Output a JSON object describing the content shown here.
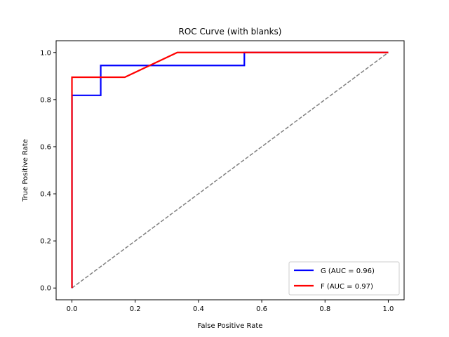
{
  "chart_data": {
    "type": "line",
    "title": "ROC Curve (with blanks)",
    "xlabel": "False Positive Rate",
    "ylabel": "True Positive Rate",
    "xlim": [
      -0.05,
      1.05
    ],
    "ylim": [
      -0.05,
      1.05
    ],
    "xticks": [
      "0.0",
      "0.2",
      "0.4",
      "0.6",
      "0.8",
      "1.0"
    ],
    "yticks": [
      "0.0",
      "0.2",
      "0.4",
      "0.6",
      "0.8",
      "1.0"
    ],
    "grid": false,
    "legend_position": "lower-right",
    "series": [
      {
        "name": "G (AUC = 0.96)",
        "color": "#0000ff",
        "x": [
          0.0,
          0.0,
          0.0,
          0.091,
          0.091,
          0.545,
          0.545,
          1.0
        ],
        "y": [
          0.0,
          0.818,
          0.818,
          0.818,
          0.945,
          0.945,
          1.0,
          1.0
        ]
      },
      {
        "name": "F (AUC = 0.97)",
        "color": "#ff0000",
        "x": [
          0.0,
          0.0,
          0.0,
          0.167,
          0.333,
          1.0
        ],
        "y": [
          0.0,
          0.895,
          0.895,
          0.895,
          1.0,
          1.0
        ]
      }
    ],
    "reference_line": {
      "x": [
        0.0,
        1.0
      ],
      "y": [
        0.0,
        1.0
      ],
      "color": "#808080",
      "style": "dashed"
    }
  }
}
